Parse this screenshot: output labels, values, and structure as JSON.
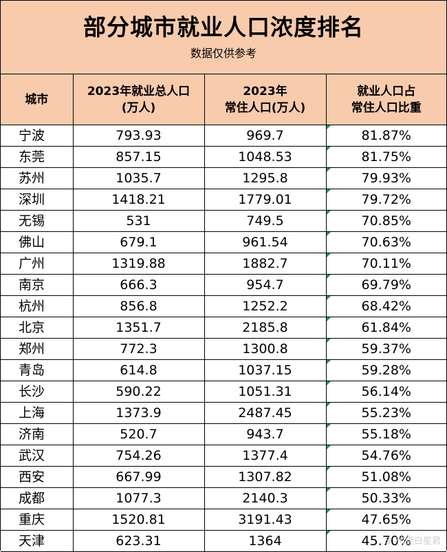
{
  "title": "部分城市就业人口浓度排名",
  "subtitle": "数据仅供参考",
  "headers": {
    "city": "城市",
    "employed_line1": "2023年就业总人口",
    "employed_line2": "(万人)",
    "resident_line1": "2023年",
    "resident_line2": "常住人口(万人)",
    "ratio_line1": "就业人口占",
    "ratio_line2": "常住人口比重"
  },
  "rows": [
    {
      "city": "宁波",
      "employed": "793.93",
      "resident": "969.7",
      "ratio": "81.87%"
    },
    {
      "city": "东莞",
      "employed": "857.15",
      "resident": "1048.53",
      "ratio": "81.75%"
    },
    {
      "city": "苏州",
      "employed": "1035.7",
      "resident": "1295.8",
      "ratio": "79.93%"
    },
    {
      "city": "深圳",
      "employed": "1418.21",
      "resident": "1779.01",
      "ratio": "79.72%"
    },
    {
      "city": "无锡",
      "employed": "531",
      "resident": "749.5",
      "ratio": "70.85%"
    },
    {
      "city": "佛山",
      "employed": "679.1",
      "resident": "961.54",
      "ratio": "70.63%"
    },
    {
      "city": "广州",
      "employed": "1319.88",
      "resident": "1882.7",
      "ratio": "70.11%"
    },
    {
      "city": "南京",
      "employed": "666.3",
      "resident": "954.7",
      "ratio": "69.79%"
    },
    {
      "city": "杭州",
      "employed": "856.8",
      "resident": "1252.2",
      "ratio": "68.42%"
    },
    {
      "city": "北京",
      "employed": "1351.7",
      "resident": "2185.8",
      "ratio": "61.84%"
    },
    {
      "city": "郑州",
      "employed": "772.3",
      "resident": "1300.8",
      "ratio": "59.37%"
    },
    {
      "city": "青岛",
      "employed": "614.8",
      "resident": "1037.15",
      "ratio": "59.28%"
    },
    {
      "city": "长沙",
      "employed": "590.22",
      "resident": "1051.31",
      "ratio": "56.14%"
    },
    {
      "city": "上海",
      "employed": "1373.9",
      "resident": "2487.45",
      "ratio": "55.23%"
    },
    {
      "city": "济南",
      "employed": "520.7",
      "resident": "943.7",
      "ratio": "55.18%"
    },
    {
      "city": "武汉",
      "employed": "754.26",
      "resident": "1377.4",
      "ratio": "54.76%"
    },
    {
      "city": "西安",
      "employed": "667.99",
      "resident": "1307.82",
      "ratio": "51.08%"
    },
    {
      "city": "成都",
      "employed": "1077.3",
      "resident": "2140.3",
      "ratio": "50.33%"
    },
    {
      "city": "重庆",
      "employed": "1520.81",
      "resident": "3191.43",
      "ratio": "47.65%"
    },
    {
      "city": "天津",
      "employed": "623.31",
      "resident": "1364",
      "ratio": "45.70%"
    }
  ],
  "watermark": "S 70党白星君",
  "colors": {
    "header_bg": "#f8cbad",
    "marker": "#2e8b57"
  }
}
